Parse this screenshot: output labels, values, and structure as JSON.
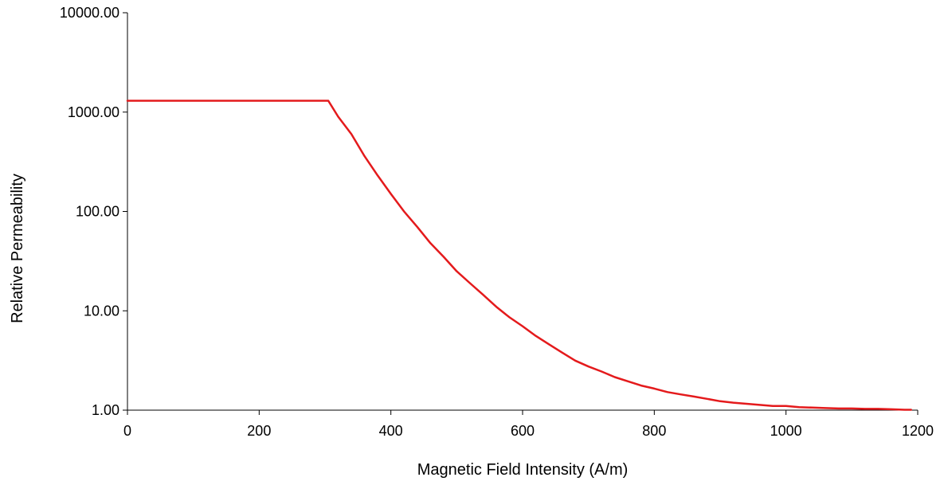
{
  "chart_data": {
    "type": "line",
    "title": "",
    "xlabel": "Magnetic Field Intensity (A/m)",
    "ylabel": "Relative Permeability",
    "xlim": [
      0,
      1200
    ],
    "ylim": [
      1,
      10000
    ],
    "y_scale": "log",
    "grid": false,
    "legend": "none",
    "x_ticks": [
      0,
      200,
      400,
      600,
      800,
      1000,
      1200
    ],
    "x_tick_labels": [
      "0",
      "200",
      "400",
      "600",
      "800",
      "1000",
      "1200"
    ],
    "y_ticks": [
      1,
      10,
      100,
      1000,
      10000
    ],
    "y_tick_labels": [
      "1.00",
      "10.00",
      "100.00",
      "1000.00",
      "10000.00"
    ],
    "series": [
      {
        "color": "#e41a1c",
        "x": [
          0,
          50,
          100,
          150,
          200,
          250,
          300,
          305,
          320,
          340,
          360,
          380,
          400,
          420,
          440,
          460,
          480,
          500,
          520,
          540,
          560,
          580,
          600,
          620,
          640,
          660,
          680,
          700,
          720,
          740,
          760,
          780,
          800,
          820,
          840,
          860,
          880,
          900,
          920,
          940,
          960,
          980,
          1000,
          1020,
          1040,
          1060,
          1080,
          1100,
          1120,
          1140,
          1160,
          1180,
          1190
        ],
        "y": [
          1300,
          1300,
          1300,
          1300,
          1300,
          1300,
          1300,
          1300,
          900,
          600,
          360,
          230,
          150,
          100,
          70,
          48,
          35,
          25,
          19,
          14.5,
          11,
          8.6,
          7.0,
          5.6,
          4.6,
          3.8,
          3.15,
          2.75,
          2.45,
          2.15,
          1.95,
          1.77,
          1.65,
          1.52,
          1.44,
          1.37,
          1.3,
          1.23,
          1.19,
          1.16,
          1.13,
          1.1,
          1.1,
          1.07,
          1.06,
          1.05,
          1.04,
          1.04,
          1.03,
          1.03,
          1.02,
          1.01,
          1.01
        ]
      }
    ]
  }
}
